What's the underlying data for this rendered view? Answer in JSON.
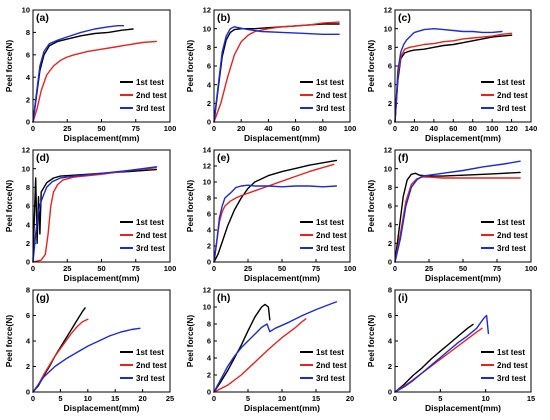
{
  "colors": {
    "1st test": "#000000",
    "2nd test": "#e8231e",
    "3rd test": "#1c2bd8"
  },
  "chart_data": [
    {
      "type": "line",
      "tag": "(a)",
      "xlabel": "Displacement(mm)",
      "ylabel": "Peel force(N)",
      "xlim": [
        0,
        100
      ],
      "ylim": [
        0,
        10
      ],
      "xticks": [
        "0",
        "25",
        "50",
        "75",
        "100"
      ],
      "yticks": [
        "0",
        "2",
        "4",
        "6",
        "8",
        "10"
      ],
      "series": [
        {
          "name": "1st test",
          "x": [
            0,
            2,
            5,
            8,
            12,
            18,
            25,
            35,
            45,
            55,
            65,
            73
          ],
          "y": [
            0,
            1.8,
            4.6,
            6.0,
            6.8,
            7.2,
            7.4,
            7.7,
            7.9,
            8.0,
            8.2,
            8.3
          ]
        },
        {
          "name": "2nd test",
          "x": [
            0,
            3,
            6,
            10,
            15,
            20,
            25,
            30,
            40,
            50,
            60,
            70,
            80,
            90
          ],
          "y": [
            0,
            1.2,
            2.8,
            4.2,
            5.0,
            5.5,
            5.8,
            6.0,
            6.3,
            6.5,
            6.7,
            6.9,
            7.1,
            7.2
          ]
        },
        {
          "name": "3rd test",
          "x": [
            0,
            2,
            5,
            8,
            12,
            18,
            25,
            35,
            45,
            55,
            62,
            66
          ],
          "y": [
            0,
            2.0,
            5.0,
            6.3,
            7.0,
            7.3,
            7.6,
            8.0,
            8.3,
            8.5,
            8.6,
            8.6
          ]
        }
      ]
    },
    {
      "type": "line",
      "tag": "(b)",
      "xlabel": "Displacement(mm)",
      "ylabel": "Peel force(N)",
      "xlim": [
        0,
        100
      ],
      "ylim": [
        0,
        12
      ],
      "xticks": [
        "0",
        "20",
        "40",
        "60",
        "80",
        "100"
      ],
      "yticks": [
        "0",
        "2",
        "4",
        "6",
        "8",
        "10",
        "12"
      ],
      "series": [
        {
          "name": "1st test",
          "x": [
            0,
            3,
            6,
            9,
            12,
            15,
            20,
            30,
            40,
            50,
            60,
            70,
            80,
            92
          ],
          "y": [
            0,
            3.5,
            7.0,
            8.8,
            9.6,
            9.9,
            10.0,
            10.0,
            10.1,
            10.2,
            10.3,
            10.4,
            10.5,
            10.5
          ]
        },
        {
          "name": "2nd test",
          "x": [
            0,
            5,
            10,
            15,
            20,
            25,
            30,
            40,
            50,
            60,
            70,
            80,
            92
          ],
          "y": [
            0,
            2.0,
            4.8,
            7.2,
            8.6,
            9.3,
            9.7,
            10.0,
            10.2,
            10.3,
            10.4,
            10.6,
            10.7
          ]
        },
        {
          "name": "3rd test",
          "x": [
            0,
            3,
            6,
            9,
            12,
            15,
            18,
            25,
            35,
            50,
            65,
            80,
            92
          ],
          "y": [
            0,
            3.8,
            7.5,
            9.2,
            10.0,
            10.2,
            10.1,
            9.9,
            9.7,
            9.6,
            9.5,
            9.4,
            9.4
          ]
        }
      ]
    },
    {
      "type": "line",
      "tag": "(c)",
      "xlabel": "Displacement(mm)",
      "ylabel": "Peel force(N)",
      "xlim": [
        0,
        140
      ],
      "ylim": [
        0,
        12
      ],
      "xticks": [
        "0",
        "20",
        "40",
        "60",
        "80",
        "100",
        "120",
        "140"
      ],
      "yticks": [
        "0",
        "2",
        "4",
        "6",
        "8",
        "10",
        "12"
      ],
      "series": [
        {
          "name": "1st test",
          "x": [
            0,
            3,
            6,
            10,
            15,
            20,
            30,
            40,
            50,
            60,
            70,
            80,
            90,
            100,
            110,
            120
          ],
          "y": [
            0,
            4.5,
            6.8,
            7.4,
            7.6,
            7.7,
            7.8,
            8.0,
            8.2,
            8.3,
            8.5,
            8.7,
            8.9,
            9.1,
            9.2,
            9.3
          ]
        },
        {
          "name": "2nd test",
          "x": [
            0,
            3,
            6,
            10,
            15,
            20,
            30,
            40,
            50,
            60,
            70,
            80,
            90,
            100,
            110,
            120
          ],
          "y": [
            0,
            5.0,
            7.0,
            7.8,
            8.0,
            8.1,
            8.3,
            8.4,
            8.6,
            8.7,
            8.9,
            9.0,
            9.1,
            9.2,
            9.4,
            9.5
          ]
        },
        {
          "name": "3rd test",
          "x": [
            0,
            3,
            6,
            9,
            12,
            16,
            20,
            30,
            40,
            50,
            60,
            70,
            80,
            90,
            100,
            110
          ],
          "y": [
            0,
            5.5,
            7.5,
            8.3,
            8.8,
            9.2,
            9.6,
            9.9,
            10.0,
            9.9,
            9.8,
            9.7,
            9.7,
            9.6,
            9.6,
            9.7
          ]
        }
      ]
    },
    {
      "type": "line",
      "tag": "(d)",
      "xlabel": "Displacement(mm)",
      "ylabel": "Peel force(N)",
      "xlim": [
        0,
        100
      ],
      "ylim": [
        0,
        12
      ],
      "xticks": [
        "0",
        "25",
        "50",
        "75",
        "100"
      ],
      "yticks": [
        "0",
        "2",
        "4",
        "6",
        "8",
        "10",
        "12"
      ],
      "series": [
        {
          "name": "1st test",
          "x": [
            0,
            1,
            2,
            3,
            4,
            5,
            6,
            8,
            10,
            15,
            20,
            30,
            50,
            70,
            90
          ],
          "y": [
            0,
            5.0,
            9.0,
            2.0,
            7.0,
            3.0,
            7.5,
            8.0,
            8.5,
            9.0,
            9.2,
            9.3,
            9.5,
            9.7,
            9.9
          ]
        },
        {
          "name": "2nd test",
          "x": [
            0,
            6,
            9,
            11,
            13,
            15,
            18,
            22,
            30,
            50,
            70,
            90
          ],
          "y": [
            0,
            0.2,
            0.8,
            3.0,
            6.0,
            7.5,
            8.3,
            8.8,
            9.1,
            9.4,
            9.8,
            10.1
          ]
        },
        {
          "name": "3rd test",
          "x": [
            0,
            2,
            4,
            6,
            8,
            10,
            14,
            20,
            30,
            50,
            70,
            90
          ],
          "y": [
            0,
            3.0,
            5.5,
            6.5,
            7.3,
            8.0,
            8.6,
            9.0,
            9.2,
            9.5,
            9.8,
            10.2
          ]
        }
      ]
    },
    {
      "type": "line",
      "tag": "(e)",
      "xlabel": "Displacement(mm)",
      "ylabel": "Peel force(N)",
      "xlim": [
        0,
        100
      ],
      "ylim": [
        0,
        14
      ],
      "xticks": [
        "0",
        "25",
        "50",
        "75",
        "100"
      ],
      "yticks": [
        "0",
        "2",
        "4",
        "6",
        "8",
        "10",
        "12",
        "14"
      ],
      "series": [
        {
          "name": "1st test",
          "x": [
            0,
            3,
            6,
            10,
            15,
            20,
            25,
            30,
            40,
            50,
            60,
            70,
            80,
            90
          ],
          "y": [
            0,
            1.0,
            2.5,
            4.5,
            6.5,
            8.0,
            9.2,
            10.0,
            10.8,
            11.3,
            11.7,
            12.1,
            12.4,
            12.7
          ]
        },
        {
          "name": "2nd test",
          "x": [
            0,
            2,
            4,
            6,
            8,
            12,
            16,
            20,
            30,
            40,
            50,
            60,
            70,
            80,
            88
          ],
          "y": [
            0,
            2.5,
            5.0,
            6.3,
            7.0,
            7.6,
            8.0,
            8.3,
            8.9,
            9.5,
            10.1,
            10.7,
            11.3,
            11.8,
            12.2
          ]
        },
        {
          "name": "3rd test",
          "x": [
            0,
            2,
            4,
            6,
            8,
            12,
            16,
            20,
            25,
            30,
            40,
            50,
            60,
            70,
            80,
            90
          ],
          "y": [
            0,
            2.5,
            5.5,
            7.0,
            8.0,
            8.6,
            9.3,
            9.5,
            9.6,
            9.5,
            9.5,
            9.4,
            9.5,
            9.5,
            9.4,
            9.5
          ]
        }
      ]
    },
    {
      "type": "line",
      "tag": "(f)",
      "xlabel": "Displacement(mm)",
      "ylabel": "Peel force(N)",
      "xlim": [
        0,
        100
      ],
      "ylim": [
        0,
        12
      ],
      "xticks": [
        "0",
        "25",
        "50",
        "75",
        "100"
      ],
      "yticks": [
        "0",
        "2",
        "4",
        "6",
        "8",
        "10",
        "12"
      ],
      "series": [
        {
          "name": "1st test",
          "x": [
            0,
            3,
            6,
            9,
            12,
            15,
            18,
            25,
            35,
            50,
            65,
            80,
            92
          ],
          "y": [
            0,
            3.5,
            7.0,
            8.8,
            9.4,
            9.5,
            9.3,
            9.2,
            9.2,
            9.3,
            9.4,
            9.5,
            9.6
          ]
        },
        {
          "name": "2nd test",
          "x": [
            0,
            4,
            8,
            12,
            16,
            20,
            25,
            35,
            50,
            65,
            80,
            92
          ],
          "y": [
            0,
            3.0,
            6.5,
            8.3,
            8.9,
            9.1,
            9.1,
            9.0,
            9.0,
            9.0,
            9.0,
            9.0
          ]
        },
        {
          "name": "3rd test",
          "x": [
            0,
            4,
            8,
            12,
            16,
            20,
            25,
            35,
            50,
            65,
            80,
            92
          ],
          "y": [
            0,
            2.5,
            6.0,
            8.0,
            8.8,
            9.2,
            9.3,
            9.5,
            9.8,
            10.2,
            10.5,
            10.8
          ]
        }
      ]
    },
    {
      "type": "line",
      "tag": "(g)",
      "xlabel": "Displacement(mm)",
      "ylabel": "Peel force(N)",
      "xlim": [
        0,
        25
      ],
      "ylim": [
        0,
        8
      ],
      "xticks": [
        "0",
        "5",
        "10",
        "15",
        "20",
        "25"
      ],
      "yticks": [
        "0",
        "2",
        "4",
        "6",
        "8"
      ],
      "series": [
        {
          "name": "1st test",
          "x": [
            0,
            1,
            2,
            3,
            4,
            5,
            6,
            7,
            8,
            9,
            9.5
          ],
          "y": [
            0,
            0.5,
            1.3,
            2.0,
            2.8,
            3.5,
            4.2,
            4.9,
            5.6,
            6.3,
            6.6
          ]
        },
        {
          "name": "2nd test",
          "x": [
            0,
            1,
            2,
            3,
            4,
            5,
            6,
            7,
            8,
            9,
            10
          ],
          "y": [
            0,
            0.6,
            1.4,
            2.1,
            2.8,
            3.4,
            4.0,
            4.6,
            5.1,
            5.5,
            5.7
          ]
        },
        {
          "name": "3rd test",
          "x": [
            0,
            1,
            2,
            3,
            4,
            6,
            8,
            10,
            12,
            14,
            16,
            18,
            19.5
          ],
          "y": [
            0,
            0.6,
            1.2,
            1.6,
            2.0,
            2.6,
            3.1,
            3.6,
            4.0,
            4.4,
            4.7,
            4.9,
            5.0
          ]
        }
      ]
    },
    {
      "type": "line",
      "tag": "(h)",
      "xlabel": "Displacement(mm)",
      "ylabel": "Peel force(N)",
      "xlim": [
        0,
        20
      ],
      "ylim": [
        0,
        12
      ],
      "xticks": [
        "0",
        "5",
        "10",
        "15",
        "20"
      ],
      "yticks": [
        "0",
        "2",
        "4",
        "6",
        "8",
        "10",
        "12"
      ],
      "series": [
        {
          "name": "1st test",
          "x": [
            0,
            1,
            2,
            3,
            4,
            5,
            6,
            7,
            7.5,
            8,
            8.2
          ],
          "y": [
            0,
            1.2,
            2.5,
            4.0,
            5.5,
            7.2,
            8.8,
            10.0,
            10.3,
            10.0,
            8.5
          ]
        },
        {
          "name": "2nd test",
          "x": [
            0,
            2,
            4,
            6,
            8,
            10,
            12,
            13,
            13.5
          ],
          "y": [
            0,
            0.8,
            2.0,
            3.5,
            5.0,
            6.4,
            7.6,
            8.3,
            8.6
          ]
        },
        {
          "name": "3rd test",
          "x": [
            0,
            1,
            2,
            3,
            4,
            5,
            6,
            7,
            7.8,
            8.2,
            9,
            11,
            13,
            15,
            17,
            18
          ],
          "y": [
            0,
            1.5,
            3.0,
            4.2,
            5.2,
            6.0,
            6.8,
            7.6,
            8.0,
            7.1,
            7.5,
            8.2,
            9.0,
            9.7,
            10.3,
            10.6
          ]
        }
      ]
    },
    {
      "type": "line",
      "tag": "(i)",
      "xlabel": "Displacement(mm)",
      "ylabel": "Peel force(N)",
      "xlim": [
        0,
        15
      ],
      "ylim": [
        0,
        8
      ],
      "xticks": [
        "0",
        "5",
        "10",
        "15"
      ],
      "yticks": [
        "0",
        "2",
        "4",
        "6",
        "8"
      ],
      "series": [
        {
          "name": "1st test",
          "x": [
            0,
            1,
            2,
            3,
            4,
            5,
            6,
            7,
            8,
            8.6
          ],
          "y": [
            0,
            0.6,
            1.3,
            1.9,
            2.6,
            3.2,
            3.8,
            4.4,
            5.0,
            5.3
          ]
        },
        {
          "name": "2nd test",
          "x": [
            0,
            1.5,
            3,
            4.5,
            6,
            7.5,
            9,
            9.6
          ],
          "y": [
            0,
            0.7,
            1.5,
            2.3,
            3.1,
            3.9,
            4.7,
            5.0
          ]
        },
        {
          "name": "3rd test",
          "x": [
            0,
            1,
            2,
            3,
            4,
            5,
            6,
            7,
            8,
            9,
            9.8,
            10.1,
            10.3
          ],
          "y": [
            0,
            0.4,
            0.9,
            1.5,
            2.1,
            2.7,
            3.3,
            3.9,
            4.4,
            5.0,
            5.8,
            6.0,
            4.6
          ]
        }
      ]
    }
  ]
}
